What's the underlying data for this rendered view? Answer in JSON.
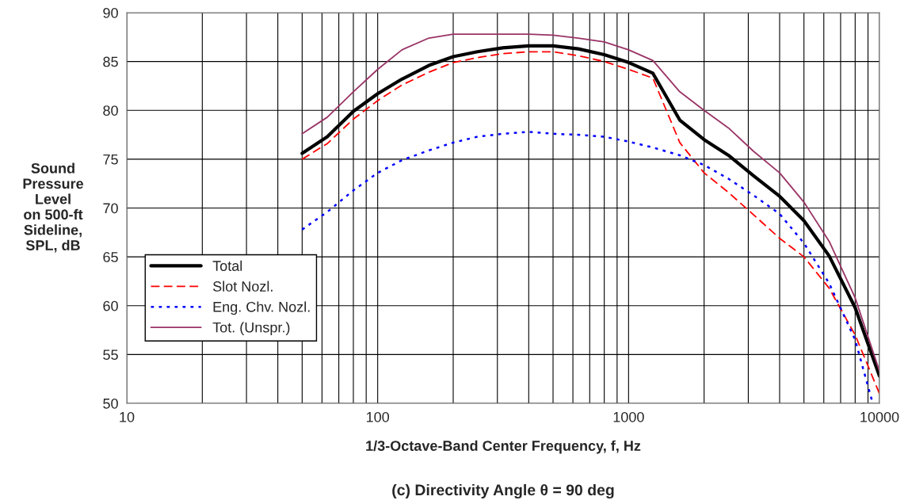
{
  "chart_data": {
    "type": "line",
    "title": "(c) Directivity Angle θ = 90 deg",
    "xlabel": "1/3-Octave-Band Center Frequency, f, Hz",
    "ylabel": "Sound\nPressure\nLevel\non 500-ft\nSideline,\nSPL, dB",
    "x": [
      50,
      63,
      80,
      100,
      125,
      160,
      200,
      250,
      315,
      400,
      500,
      630,
      800,
      1000,
      1250,
      1600,
      2000,
      2500,
      3150,
      4000,
      5000,
      6300,
      8000,
      10000
    ],
    "series": [
      {
        "name": "Total",
        "color": "#000000",
        "line_style": "solid",
        "values": [
          75.6,
          77.3,
          79.9,
          81.7,
          83.2,
          84.6,
          85.5,
          86.0,
          86.4,
          86.6,
          86.6,
          86.3,
          85.7,
          84.9,
          83.8,
          79.0,
          77.0,
          75.4,
          73.3,
          71.2,
          68.7,
          65.1,
          59.8,
          52.8
        ]
      },
      {
        "name": "Slot Nozl.",
        "color": "#ff0000",
        "line_style": "dashed",
        "values": [
          75.0,
          76.6,
          79.1,
          81.0,
          82.6,
          83.9,
          84.9,
          85.4,
          85.8,
          86.0,
          86.0,
          85.6,
          85.0,
          84.2,
          83.3,
          76.7,
          73.6,
          71.6,
          69.3,
          66.9,
          65.0,
          61.8,
          57.0,
          51.0
        ]
      },
      {
        "name": "Eng. Chv. Nozl.",
        "color": "#0000ff",
        "line_style": "dotted",
        "x": [
          50,
          63,
          80,
          100,
          125,
          160,
          200,
          250,
          315,
          400,
          500,
          630,
          800,
          1000,
          1250,
          1600,
          2000,
          2500,
          3150,
          4000,
          5000,
          6300,
          8000,
          9400
        ],
        "values": [
          67.8,
          69.6,
          71.8,
          73.6,
          74.9,
          75.9,
          76.7,
          77.3,
          77.6,
          77.8,
          77.6,
          77.5,
          77.3,
          76.8,
          76.2,
          75.4,
          74.4,
          73.0,
          71.3,
          69.4,
          66.4,
          62.3,
          56.5,
          50.0
        ]
      },
      {
        "name": "Tot. (Unspr.)",
        "color": "#993366",
        "line_style": "solid",
        "values": [
          77.6,
          79.3,
          81.9,
          84.2,
          86.2,
          87.4,
          87.8,
          87.8,
          87.8,
          87.8,
          87.7,
          87.4,
          87.0,
          86.2,
          85.1,
          81.9,
          80.0,
          78.2,
          75.8,
          73.6,
          70.6,
          66.6,
          60.8,
          53.3
        ]
      }
    ],
    "log": "x",
    "xlim": [
      10,
      10000
    ],
    "xticks": [
      10,
      100,
      1000,
      10000
    ],
    "ylim": [
      50,
      90
    ],
    "yticks": [
      50,
      55,
      60,
      65,
      70,
      75,
      80,
      85,
      90
    ],
    "grid": true,
    "legend": "left"
  }
}
